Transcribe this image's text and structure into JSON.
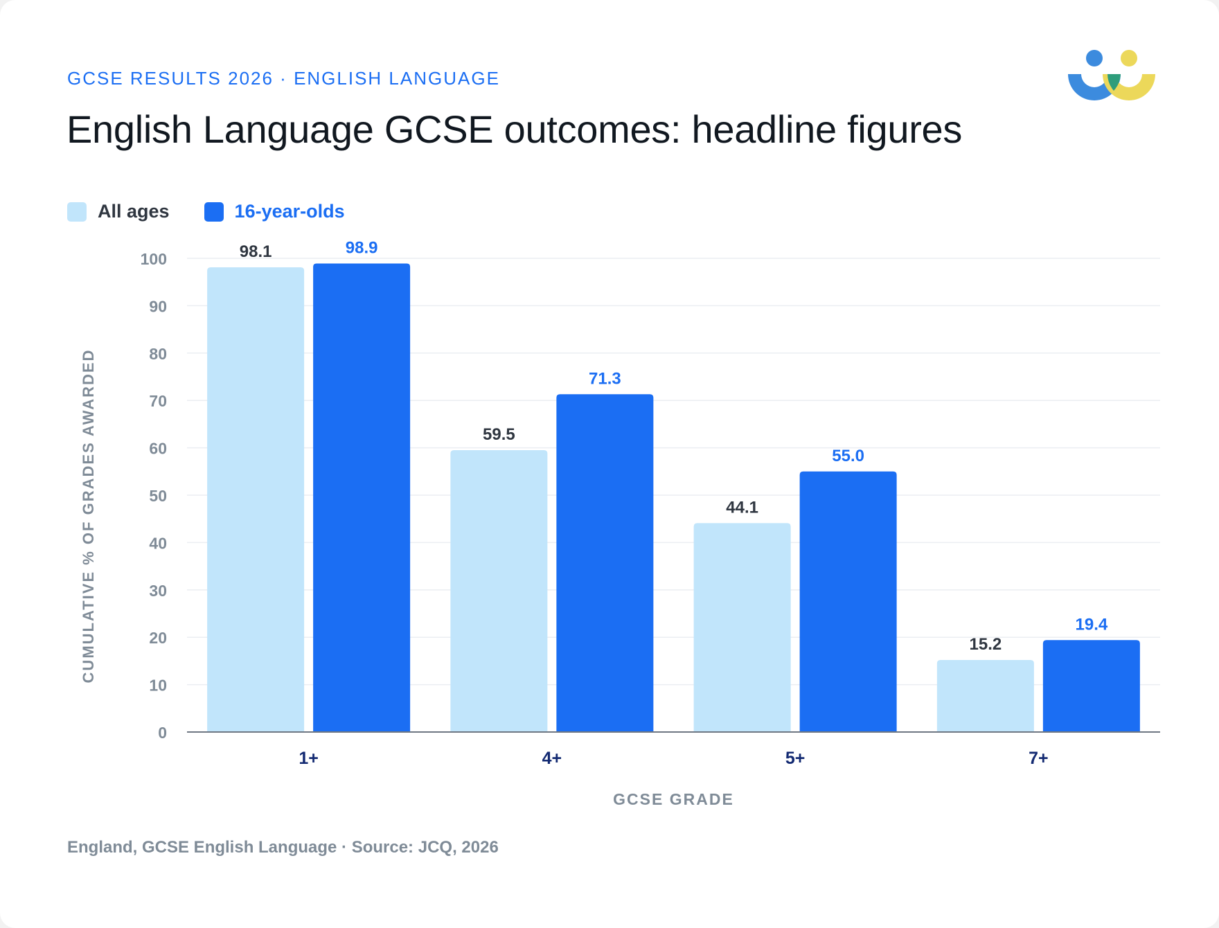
{
  "header": {
    "kicker": "GCSE RESULTS 2026 · ENGLISH LANGUAGE",
    "title": "English Language GCSE outcomes: headline figures"
  },
  "footer": {
    "source": "England, GCSE English Language · Source: JCQ, 2026"
  },
  "colors": {
    "all_ages": "#c1e5fb",
    "sixteen": "#1b6ef3",
    "label_dark": "#2f3640",
    "label_blue": "#1b6ef3",
    "tick": "#7f8b97",
    "category": "#132a72",
    "grid": "#ebeef2",
    "axis": "#6e7782",
    "logo_blue": "#3c8bde",
    "logo_yellow": "#ecd85a",
    "logo_green": "#2e9d7b"
  },
  "logo": {
    "icon": "people-logo-icon"
  },
  "chart_data": {
    "type": "bar",
    "categories": [
      "1+",
      "4+",
      "5+",
      "7+"
    ],
    "series": [
      {
        "name": "All ages",
        "values": [
          98.1,
          59.5,
          44.1,
          15.2
        ],
        "labels": [
          "98.1",
          "59.5",
          "44.1",
          "15.2"
        ]
      },
      {
        "name": "16-year-olds",
        "values": [
          98.9,
          71.3,
          55.0,
          19.4
        ],
        "labels": [
          "98.9",
          "71.3",
          "55.0",
          "19.4"
        ]
      }
    ],
    "xlabel": "GCSE GRADE",
    "ylabel": "CUMULATIVE % OF GRADES AWARDED",
    "ylim": [
      0,
      100
    ],
    "yticks": [
      0,
      10,
      20,
      30,
      40,
      50,
      60,
      70,
      80,
      90,
      100
    ],
    "grid": true,
    "legend": "top-left"
  }
}
